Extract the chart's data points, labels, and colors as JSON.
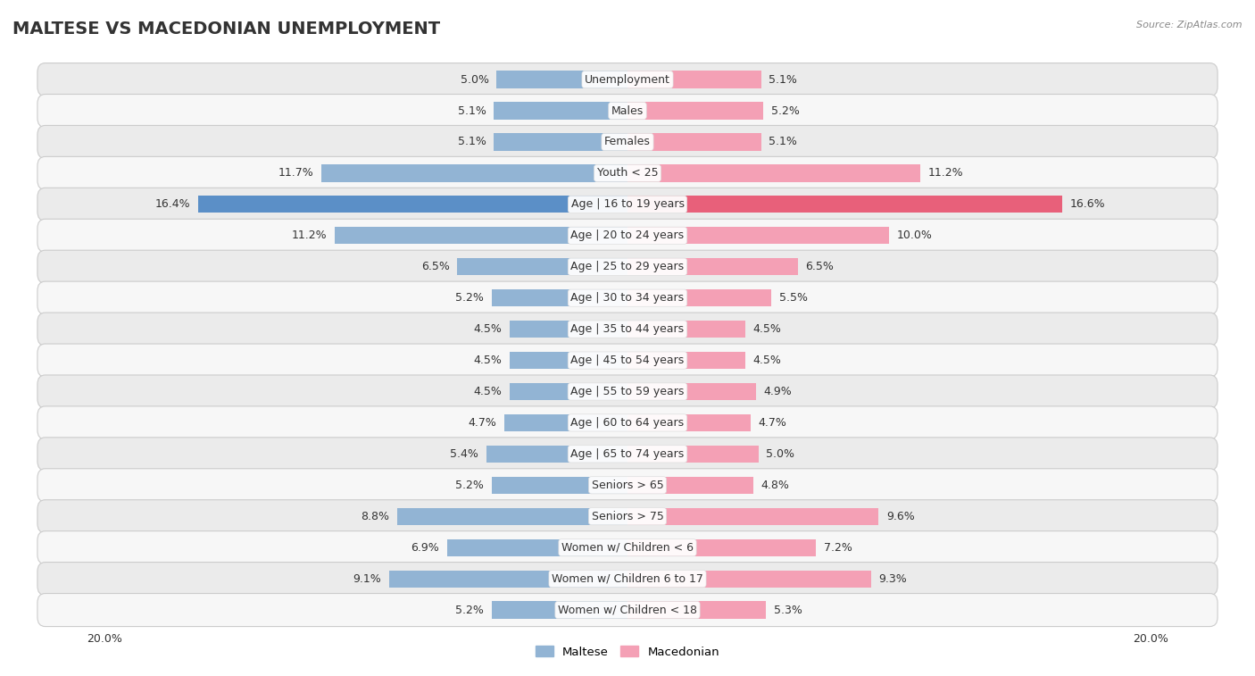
{
  "title": "MALTESE VS MACEDONIAN UNEMPLOYMENT",
  "source": "Source: ZipAtlas.com",
  "categories": [
    "Unemployment",
    "Males",
    "Females",
    "Youth < 25",
    "Age | 16 to 19 years",
    "Age | 20 to 24 years",
    "Age | 25 to 29 years",
    "Age | 30 to 34 years",
    "Age | 35 to 44 years",
    "Age | 45 to 54 years",
    "Age | 55 to 59 years",
    "Age | 60 to 64 years",
    "Age | 65 to 74 years",
    "Seniors > 65",
    "Seniors > 75",
    "Women w/ Children < 6",
    "Women w/ Children 6 to 17",
    "Women w/ Children < 18"
  ],
  "maltese": [
    5.0,
    5.1,
    5.1,
    11.7,
    16.4,
    11.2,
    6.5,
    5.2,
    4.5,
    4.5,
    4.5,
    4.7,
    5.4,
    5.2,
    8.8,
    6.9,
    9.1,
    5.2
  ],
  "macedonian": [
    5.1,
    5.2,
    5.1,
    11.2,
    16.6,
    10.0,
    6.5,
    5.5,
    4.5,
    4.5,
    4.9,
    4.7,
    5.0,
    4.8,
    9.6,
    7.2,
    9.3,
    5.3
  ],
  "maltese_color_normal": "#92b4d4",
  "maltese_color_highlight": "#5b8fc7",
  "macedonian_color_normal": "#f4a0b5",
  "macedonian_color_highlight": "#e8607a",
  "bar_height": 0.55,
  "max_val": 20.0,
  "row_bg_odd": "#ebebeb",
  "row_bg_even": "#f7f7f7",
  "title_fontsize": 14,
  "label_fontsize": 9,
  "value_fontsize": 9
}
